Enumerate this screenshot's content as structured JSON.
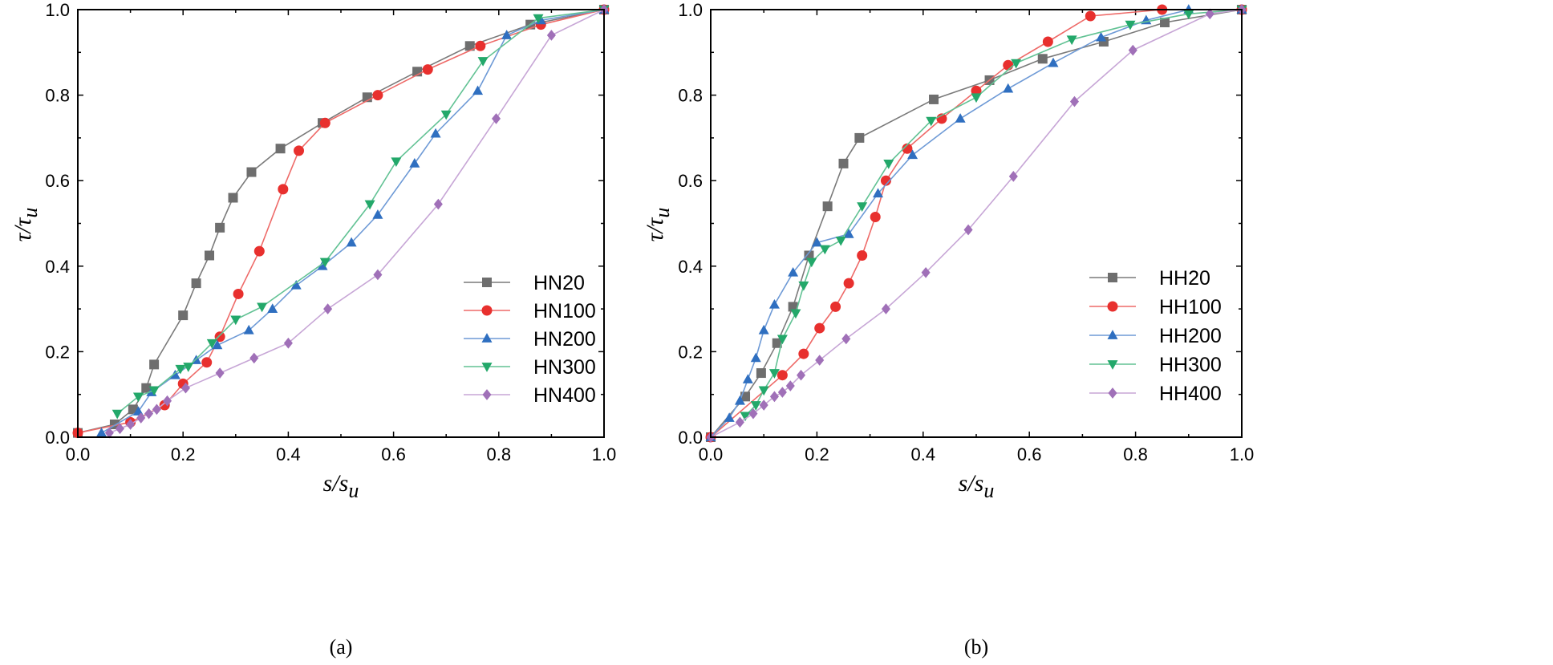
{
  "chart_data": [
    {
      "type": "line",
      "panel": "(a)",
      "caption": "(a)",
      "xlabel": "s/s_u",
      "xlabel_main": "s/s",
      "xlabel_sub": "u",
      "ylabel": "τ/τ_u",
      "ylabel_main": "τ/τ",
      "ylabel_sub": "u",
      "xlim": [
        0,
        1
      ],
      "ylim": [
        0,
        1
      ],
      "xticks": [
        "0.0",
        "0.2",
        "0.4",
        "0.6",
        "0.8",
        "1.0"
      ],
      "yticks": [
        "0.0",
        "0.2",
        "0.4",
        "0.6",
        "0.8",
        "1.0"
      ],
      "legend_position": "bottom-right",
      "series": [
        {
          "name": "HN20",
          "color": "#6e6e6e",
          "line": "#7a7a7a",
          "marker": "square",
          "x": [
            0,
            0.07,
            0.105,
            0.13,
            0.145,
            0.2,
            0.225,
            0.25,
            0.27,
            0.295,
            0.33,
            0.385,
            0.465,
            0.55,
            0.645,
            0.745,
            0.86,
            1.0
          ],
          "y": [
            0.01,
            0.03,
            0.065,
            0.115,
            0.17,
            0.285,
            0.36,
            0.425,
            0.49,
            0.56,
            0.62,
            0.675,
            0.735,
            0.795,
            0.855,
            0.915,
            0.965,
            1.0
          ]
        },
        {
          "name": "HN100",
          "color": "#e8302e",
          "line": "#ee6a68",
          "marker": "circle",
          "x": [
            0,
            0.1,
            0.165,
            0.2,
            0.245,
            0.27,
            0.305,
            0.345,
            0.39,
            0.42,
            0.47,
            0.57,
            0.665,
            0.765,
            0.88,
            1.0
          ],
          "y": [
            0.01,
            0.035,
            0.075,
            0.125,
            0.175,
            0.235,
            0.335,
            0.435,
            0.58,
            0.67,
            0.735,
            0.8,
            0.86,
            0.915,
            0.965,
            1.0
          ]
        },
        {
          "name": "HN200",
          "color": "#2f6fc0",
          "line": "#6e9ad6",
          "marker": "triangle-up",
          "x": [
            0.045,
            0.115,
            0.14,
            0.185,
            0.225,
            0.265,
            0.325,
            0.37,
            0.415,
            0.465,
            0.52,
            0.57,
            0.64,
            0.68,
            0.76,
            0.815,
            0.88,
            1.0
          ],
          "y": [
            0.01,
            0.06,
            0.105,
            0.145,
            0.18,
            0.215,
            0.25,
            0.3,
            0.355,
            0.4,
            0.455,
            0.52,
            0.64,
            0.71,
            0.81,
            0.94,
            0.975,
            1.0
          ]
        },
        {
          "name": "HN300",
          "color": "#23a86a",
          "line": "#62c294",
          "marker": "triangle-down",
          "x": [
            0.075,
            0.115,
            0.145,
            0.195,
            0.21,
            0.255,
            0.3,
            0.35,
            0.47,
            0.555,
            0.605,
            0.7,
            0.77,
            0.875,
            1.0
          ],
          "y": [
            0.055,
            0.095,
            0.11,
            0.16,
            0.165,
            0.22,
            0.275,
            0.305,
            0.41,
            0.545,
            0.645,
            0.755,
            0.88,
            0.98,
            1.0
          ]
        },
        {
          "name": "HN400",
          "color": "#a070b8",
          "line": "#c7a6d6",
          "marker": "diamond",
          "x": [
            0.06,
            0.08,
            0.1,
            0.12,
            0.135,
            0.15,
            0.17,
            0.205,
            0.27,
            0.335,
            0.4,
            0.475,
            0.57,
            0.685,
            0.795,
            0.9,
            1.0
          ],
          "y": [
            0.01,
            0.02,
            0.03,
            0.045,
            0.055,
            0.065,
            0.085,
            0.115,
            0.15,
            0.185,
            0.22,
            0.3,
            0.38,
            0.545,
            0.745,
            0.94,
            1.0
          ]
        }
      ]
    },
    {
      "type": "line",
      "panel": "(b)",
      "caption": "(b)",
      "xlabel": "s/s_u",
      "xlabel_main": "s/s",
      "xlabel_sub": "u",
      "ylabel": "τ/τ_u",
      "ylabel_main": "τ/τ",
      "ylabel_sub": "u",
      "xlim": [
        0,
        1
      ],
      "ylim": [
        0,
        1
      ],
      "xticks": [
        "0.0",
        "0.2",
        "0.4",
        "0.6",
        "0.8",
        "1.0"
      ],
      "yticks": [
        "0.0",
        "0.2",
        "0.4",
        "0.6",
        "0.8",
        "1.0"
      ],
      "legend_position": "right",
      "series": [
        {
          "name": "HH20",
          "color": "#6e6e6e",
          "line": "#7a7a7a",
          "marker": "square",
          "x": [
            0,
            0.065,
            0.095,
            0.125,
            0.155,
            0.185,
            0.22,
            0.25,
            0.28,
            0.42,
            0.525,
            0.625,
            0.74,
            0.855,
            1.0
          ],
          "y": [
            0.0,
            0.095,
            0.15,
            0.22,
            0.305,
            0.425,
            0.54,
            0.64,
            0.7,
            0.79,
            0.835,
            0.885,
            0.925,
            0.97,
            1.0
          ]
        },
        {
          "name": "HH100",
          "color": "#e8302e",
          "line": "#ee6a68",
          "marker": "circle",
          "x": [
            0,
            0.135,
            0.175,
            0.205,
            0.235,
            0.26,
            0.285,
            0.31,
            0.33,
            0.37,
            0.435,
            0.5,
            0.56,
            0.635,
            0.715,
            0.85,
            1.0
          ],
          "y": [
            0.0,
            0.145,
            0.195,
            0.255,
            0.305,
            0.36,
            0.425,
            0.515,
            0.6,
            0.675,
            0.745,
            0.81,
            0.87,
            0.925,
            0.985,
            1.0,
            1.0
          ]
        },
        {
          "name": "HH200",
          "color": "#2f6fc0",
          "line": "#6e9ad6",
          "marker": "triangle-up",
          "x": [
            0,
            0.035,
            0.055,
            0.07,
            0.085,
            0.1,
            0.12,
            0.155,
            0.2,
            0.26,
            0.315,
            0.38,
            0.47,
            0.56,
            0.645,
            0.735,
            0.82,
            0.9,
            1.0
          ],
          "y": [
            0.0,
            0.045,
            0.085,
            0.135,
            0.185,
            0.25,
            0.31,
            0.385,
            0.455,
            0.475,
            0.57,
            0.66,
            0.745,
            0.815,
            0.875,
            0.935,
            0.975,
            1.0,
            1.0
          ]
        },
        {
          "name": "HH300",
          "color": "#23a86a",
          "line": "#62c294",
          "marker": "triangle-down",
          "x": [
            0.065,
            0.085,
            0.1,
            0.12,
            0.135,
            0.16,
            0.175,
            0.19,
            0.215,
            0.245,
            0.285,
            0.335,
            0.415,
            0.5,
            0.575,
            0.68,
            0.79,
            0.9,
            1.0
          ],
          "y": [
            0.05,
            0.075,
            0.11,
            0.15,
            0.23,
            0.29,
            0.355,
            0.41,
            0.44,
            0.46,
            0.54,
            0.64,
            0.74,
            0.795,
            0.875,
            0.93,
            0.965,
            0.99,
            1.0
          ]
        },
        {
          "name": "HH400",
          "color": "#a070b8",
          "line": "#c7a6d6",
          "marker": "diamond",
          "x": [
            0,
            0.055,
            0.08,
            0.1,
            0.12,
            0.135,
            0.15,
            0.17,
            0.205,
            0.255,
            0.33,
            0.405,
            0.485,
            0.57,
            0.685,
            0.795,
            0.94,
            1.0
          ],
          "y": [
            0.0,
            0.035,
            0.055,
            0.075,
            0.095,
            0.105,
            0.12,
            0.145,
            0.18,
            0.23,
            0.3,
            0.385,
            0.485,
            0.61,
            0.785,
            0.905,
            0.99,
            1.0
          ]
        }
      ]
    }
  ]
}
